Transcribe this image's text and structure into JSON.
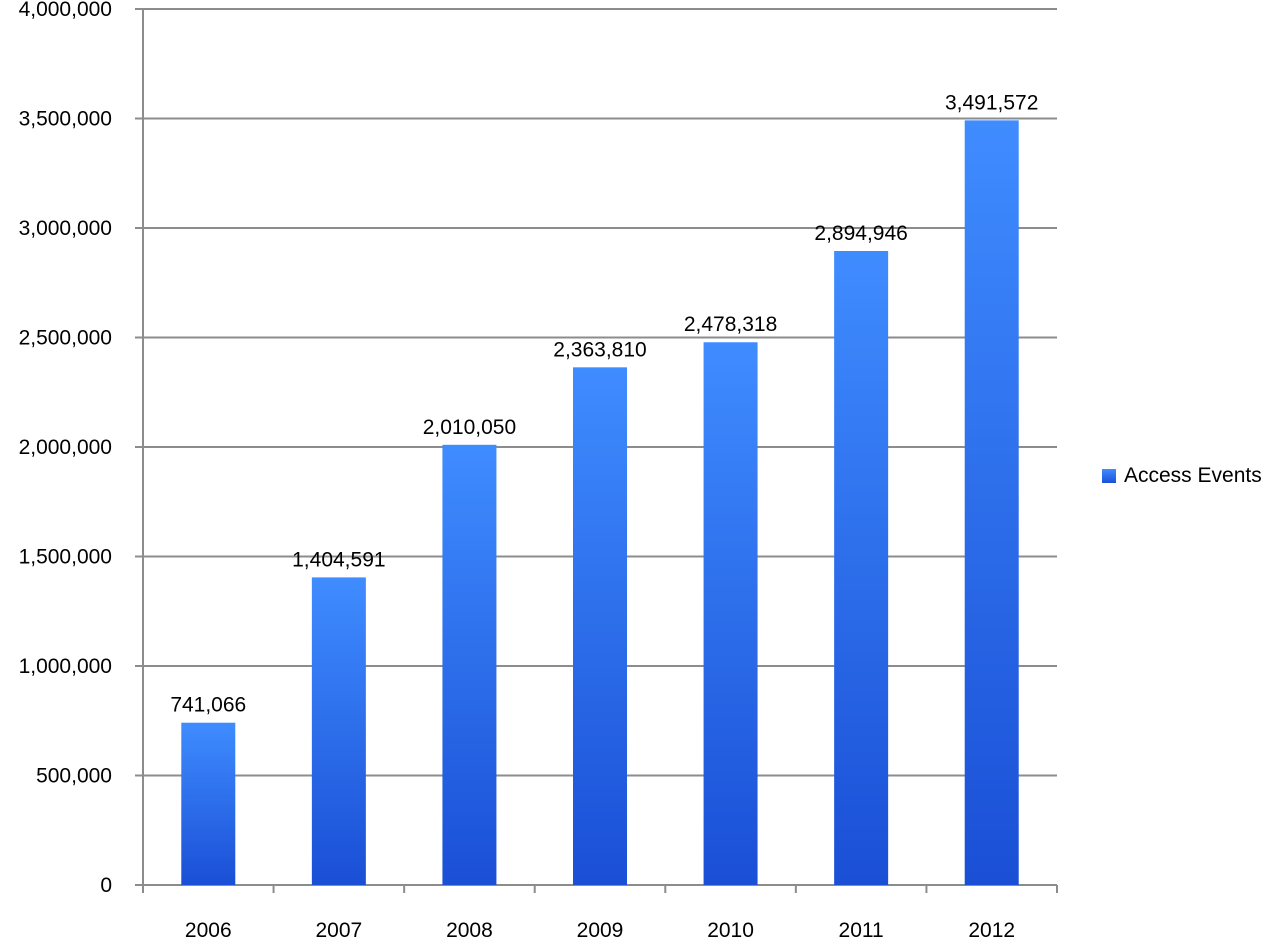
{
  "chart_data": {
    "type": "bar",
    "categories": [
      "2006",
      "2007",
      "2008",
      "2009",
      "2010",
      "2011",
      "2012"
    ],
    "series": [
      {
        "name": "Access Events",
        "values": [
          741066,
          1404591,
          2010050,
          2363810,
          2478318,
          2894946,
          3491572
        ],
        "data_labels": [
          "741,066",
          "1,404,591",
          "2,010,050",
          "2,363,810",
          "2,478,318",
          "2,894,946",
          "3,491,572"
        ]
      }
    ],
    "yticks": [
      0,
      500000,
      1000000,
      1500000,
      2000000,
      2500000,
      3000000,
      3500000,
      4000000
    ],
    "ytick_labels": [
      "0",
      "500,000",
      "1,000,000",
      "1,500,000",
      "2,000,000",
      "2,500,000",
      "3,000,000",
      "3,500,000",
      "4,000,000"
    ],
    "ylim": [
      0,
      4000000
    ],
    "grid": true,
    "legend_position": "right",
    "colors": {
      "bar_top": "#3f8cff",
      "bar_bottom": "#1a4fd6",
      "grid": "#8c8c8c",
      "axis": "#8c8c8c"
    }
  }
}
